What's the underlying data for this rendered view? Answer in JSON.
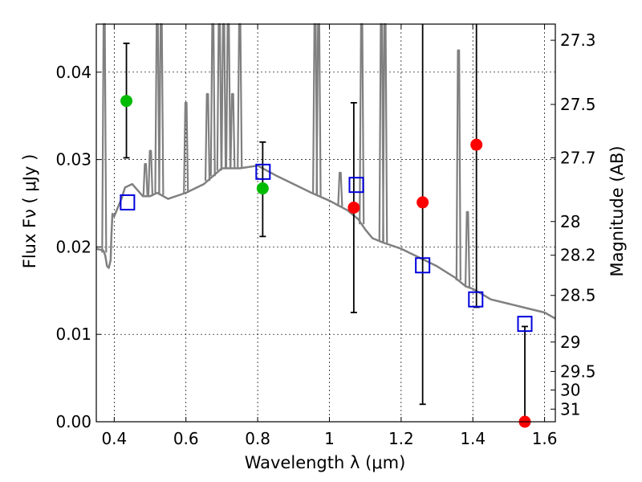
{
  "chart_data": {
    "type": "scatter",
    "xlabel": "Wavelength  λ (μm)",
    "ylabel_left": "Flux  Fν  ( μJy )",
    "ylabel_right": "Magnitude (AB)",
    "xlim": [
      0.35,
      1.63
    ],
    "ylim": [
      0.0,
      0.0455
    ],
    "x_ticks": [
      {
        "v": 0.4,
        "label": "0.4"
      },
      {
        "v": 0.6,
        "label": "0.6"
      },
      {
        "v": 0.8,
        "label": "0.8"
      },
      {
        "v": 1.0,
        "label": "1"
      },
      {
        "v": 1.2,
        "label": "1.2"
      },
      {
        "v": 1.4,
        "label": "1.4"
      },
      {
        "v": 1.6,
        "label": "1.6"
      }
    ],
    "y_ticks": [
      {
        "v": 0.0,
        "label": "0.00"
      },
      {
        "v": 0.01,
        "label": "0.01"
      },
      {
        "v": 0.02,
        "label": "0.02"
      },
      {
        "v": 0.03,
        "label": "0.03"
      },
      {
        "v": 0.04,
        "label": "0.04"
      }
    ],
    "mag_ticks": [
      {
        "label": "27.3",
        "mag": 27.3
      },
      {
        "label": "27.5",
        "mag": 27.5
      },
      {
        "label": "27.7",
        "mag": 27.7
      },
      {
        "label": "28",
        "mag": 28.0
      },
      {
        "label": "28.2",
        "mag": 28.2
      },
      {
        "label": "28.5",
        "mag": 28.5
      },
      {
        "label": "29",
        "mag": 29.0
      },
      {
        "label": "29.5",
        "mag": 29.5
      },
      {
        "label": "30",
        "mag": 30.0
      },
      {
        "label": "31",
        "mag": 31.0
      }
    ],
    "grid": true,
    "model_sed": {
      "color": "#808080",
      "x": [
        0.35,
        0.36,
        0.37,
        0.375,
        0.38,
        0.385,
        0.39,
        0.392,
        0.395,
        0.4,
        0.41,
        0.42,
        0.43,
        0.45,
        0.48,
        0.5,
        0.52,
        0.55,
        0.6,
        0.65,
        0.7,
        0.75,
        0.8,
        0.85,
        0.9,
        0.95,
        1.0,
        1.05,
        1.08,
        1.1,
        1.12,
        1.15,
        1.2,
        1.25,
        1.3,
        1.35,
        1.38,
        1.4,
        1.43,
        1.45,
        1.5,
        1.55,
        1.6,
        1.63
      ],
      "y": [
        0.0198,
        0.0197,
        0.0196,
        0.019,
        0.0178,
        0.0176,
        0.0185,
        0.0212,
        0.0238,
        0.0235,
        0.0245,
        0.0255,
        0.0268,
        0.0272,
        0.0258,
        0.0258,
        0.0262,
        0.0255,
        0.0262,
        0.0272,
        0.029,
        0.029,
        0.0293,
        0.0282,
        0.0272,
        0.0262,
        0.0253,
        0.0242,
        0.0232,
        0.022,
        0.021,
        0.0205,
        0.0198,
        0.0188,
        0.0178,
        0.0165,
        0.0155,
        0.0152,
        0.0145,
        0.014,
        0.0135,
        0.013,
        0.0125,
        0.0118
      ]
    },
    "emission_lines": [
      {
        "x": 0.372,
        "top": 0.0455
      },
      {
        "x": 0.487,
        "top": 0.0295
      },
      {
        "x": 0.501,
        "top": 0.031
      },
      {
        "x": 0.52,
        "top": 0.0455
      },
      {
        "x": 0.531,
        "top": 0.0455
      },
      {
        "x": 0.6,
        "top": 0.0365
      },
      {
        "x": 0.66,
        "top": 0.0375
      },
      {
        "x": 0.675,
        "top": 0.0455
      },
      {
        "x": 0.693,
        "top": 0.0455
      },
      {
        "x": 0.705,
        "top": 0.0455
      },
      {
        "x": 0.718,
        "top": 0.0455
      },
      {
        "x": 0.73,
        "top": 0.0375
      },
      {
        "x": 0.75,
        "top": 0.0455
      },
      {
        "x": 0.96,
        "top": 0.0455
      },
      {
        "x": 0.97,
        "top": 0.0455
      },
      {
        "x": 1.03,
        "top": 0.0285
      },
      {
        "x": 1.09,
        "top": 0.0455
      },
      {
        "x": 1.145,
        "top": 0.0455
      },
      {
        "x": 1.155,
        "top": 0.0455
      },
      {
        "x": 1.36,
        "top": 0.0425
      },
      {
        "x": 1.385,
        "top": 0.024
      }
    ],
    "series": [
      {
        "name": "",
        "marker": "circle",
        "points": [
          {
            "x": 0.434,
            "y": 0.0367,
            "color": "#00bb00",
            "err": [
              0.0302,
              0.0433
            ]
          },
          {
            "x": 0.814,
            "y": 0.0267,
            "color": "#00bb00",
            "err": [
              0.0212,
              0.032
            ]
          },
          {
            "x": 1.068,
            "y": 0.0245,
            "color": "#ff0000",
            "err": [
              0.0125,
              0.0365
            ]
          },
          {
            "x": 1.26,
            "y": 0.0251,
            "color": "#ff0000",
            "err": [
              0.002,
              0.0455
            ]
          },
          {
            "x": 1.41,
            "y": 0.0317,
            "color": "#ff0000",
            "err": [
              0.0131,
              0.0455
            ]
          },
          {
            "x": 1.545,
            "y": 0.0,
            "color": "#ff0000",
            "err": [
              0.0,
              0.0109
            ]
          }
        ]
      },
      {
        "name": "",
        "marker": "open-square",
        "color": "#0000dd",
        "points": [
          {
            "x": 0.437,
            "y": 0.0251
          },
          {
            "x": 0.815,
            "y": 0.0286
          },
          {
            "x": 1.075,
            "y": 0.0271
          },
          {
            "x": 1.26,
            "y": 0.0179
          },
          {
            "x": 1.408,
            "y": 0.014
          },
          {
            "x": 1.545,
            "y": 0.0112
          }
        ]
      }
    ]
  }
}
